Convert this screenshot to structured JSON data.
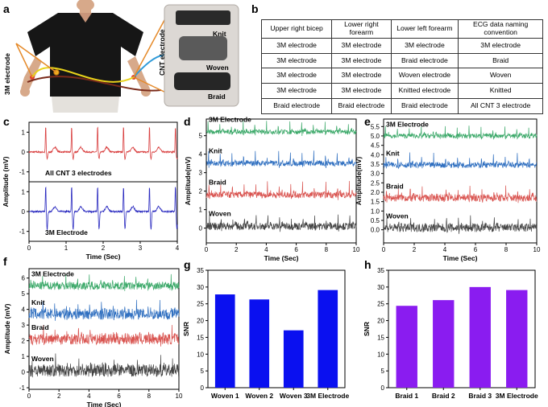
{
  "panels": {
    "a": {
      "label": "a",
      "left_electrode_label": "3M electrode",
      "cnt_label": "CNT electrode",
      "samples": [
        "Knit",
        "Woven",
        "Braid"
      ]
    },
    "b": {
      "label": "b",
      "headers": [
        "Upper right bicep",
        "Lower right forearm",
        "Lower left forearm",
        "ECG data naming convention"
      ],
      "rows": [
        [
          "3M electrode",
          "3M electrode",
          "3M electrode",
          "3M electrode"
        ],
        [
          "3M electrode",
          "3M electrode",
          "Braid electrode",
          "Braid"
        ],
        [
          "3M electrode",
          "3M electrode",
          "Woven electrode",
          "Woven"
        ],
        [
          "3M electrode",
          "3M electrode",
          "Knitted electrode",
          "Knitted"
        ],
        [
          "Braid electrode",
          "Braid electrode",
          "Braid electrode",
          "All CNT 3 electrode"
        ]
      ]
    },
    "c": {
      "label": "c"
    },
    "d": {
      "label": "d"
    },
    "e": {
      "label": "e"
    },
    "f": {
      "label": "f"
    },
    "g": {
      "label": "g"
    },
    "h": {
      "label": "h"
    }
  },
  "colors": {
    "green": "#3aa868",
    "blue": "#2f6fc0",
    "red": "#d9534f",
    "gray": "#444444",
    "c_red": "#d94040",
    "c_blue": "#2b2bc0",
    "bar_blue": "#0a10f0",
    "bar_purple": "#8a1cf0"
  },
  "chart_data": [
    {
      "id": "c",
      "type": "line",
      "xlabel": "Time (Sec)",
      "ylabel": "Amplitude (mV)",
      "xlim": [
        0,
        4
      ],
      "xticks": [
        "0",
        "1",
        "2",
        "3",
        "4"
      ],
      "series": [
        {
          "name": "All CNT 3 electrodes",
          "color": "#d94040",
          "baseline": 0,
          "ylim": [
            -1.5,
            1.5
          ],
          "yticks": [
            "-1",
            "0",
            "1"
          ],
          "beats": [
            0.45,
            1.15,
            1.85,
            2.55,
            3.25,
            3.95
          ]
        },
        {
          "name": "3M Electrode",
          "color": "#2b2bc0",
          "baseline": 0,
          "ylim": [
            -1.5,
            1.5
          ],
          "yticks": [
            "-1",
            "0",
            "1"
          ],
          "beats": [
            0.45,
            1.15,
            1.85,
            2.55,
            3.25,
            3.95
          ]
        }
      ]
    },
    {
      "id": "d",
      "type": "line",
      "xlabel": "Time (Sec)",
      "ylabel": "Amplitude(mV)",
      "xlim": [
        0,
        10
      ],
      "ylim": [
        -0.8,
        5.9
      ],
      "xticks": [
        "0",
        "2",
        "4",
        "6",
        "8",
        "10"
      ],
      "yticks": [
        "0",
        "1",
        "2",
        "3",
        "4",
        "5"
      ],
      "series": [
        {
          "name": "3M Electrode",
          "baseline": 5.2,
          "color": "#3aa868"
        },
        {
          "name": "Knit",
          "baseline": 3.5,
          "color": "#2f6fc0"
        },
        {
          "name": "Braid",
          "baseline": 1.8,
          "color": "#d9534f"
        },
        {
          "name": "Woven",
          "baseline": 0.1,
          "color": "#444444"
        }
      ]
    },
    {
      "id": "e",
      "type": "line",
      "xlabel": "Time (Sec)",
      "ylabel": "Amplitude(mV)",
      "xlim": [
        0,
        10
      ],
      "ylim": [
        -0.7,
        5.9
      ],
      "xticks": [
        "0",
        "2",
        "4",
        "6",
        "8",
        "10"
      ],
      "yticks": [
        "0.0",
        "0.5",
        "1.0",
        "1.5",
        "2.0",
        "2.5",
        "3.0",
        "3.5",
        "4.0",
        "4.5",
        "5.0",
        "5.5"
      ],
      "series": [
        {
          "name": "3M Electrode",
          "baseline": 5.0,
          "color": "#3aa868"
        },
        {
          "name": "Knit",
          "baseline": 3.45,
          "color": "#2f6fc0"
        },
        {
          "name": "Braid",
          "baseline": 1.7,
          "color": "#d9534f"
        },
        {
          "name": "Woven",
          "baseline": 0.1,
          "color": "#444444"
        }
      ]
    },
    {
      "id": "f",
      "type": "line",
      "xlabel": "Time (Sec)",
      "ylabel": "Amplitude (mV)",
      "xlim": [
        0,
        10
      ],
      "ylim": [
        -1.1,
        6.6
      ],
      "xticks": [
        "0",
        "2",
        "4",
        "6",
        "8",
        "10"
      ],
      "yticks": [
        "-1",
        "0",
        "1",
        "2",
        "3",
        "4",
        "5",
        "6"
      ],
      "series": [
        {
          "name": "3M Electrode",
          "baseline": 5.5,
          "color": "#3aa868"
        },
        {
          "name": "Knit",
          "baseline": 3.7,
          "color": "#2f6fc0"
        },
        {
          "name": "Braid",
          "baseline": 2.1,
          "color": "#d9534f"
        },
        {
          "name": "Woven",
          "baseline": 0.1,
          "color": "#444444"
        }
      ]
    },
    {
      "id": "g",
      "type": "bar",
      "ylabel": "SNR",
      "ylim": [
        0,
        35
      ],
      "yticks": [
        "0",
        "5",
        "10",
        "15",
        "20",
        "25",
        "30",
        "35"
      ],
      "categories": [
        "Woven 1",
        "Woven 2",
        "Woven 3",
        "3M Electrode"
      ],
      "values": [
        27.8,
        26.3,
        17.1,
        29.1
      ],
      "color": "#0a10f0"
    },
    {
      "id": "h",
      "type": "bar",
      "ylabel": "SNR",
      "ylim": [
        0,
        35
      ],
      "yticks": [
        "0",
        "5",
        "10",
        "15",
        "20",
        "25",
        "30",
        "35"
      ],
      "categories": [
        "Braid 1",
        "Braid 2",
        "Braid 3",
        "3M Electrode"
      ],
      "values": [
        24.4,
        26.1,
        30.0,
        29.1
      ],
      "color": "#8a1cf0"
    }
  ]
}
